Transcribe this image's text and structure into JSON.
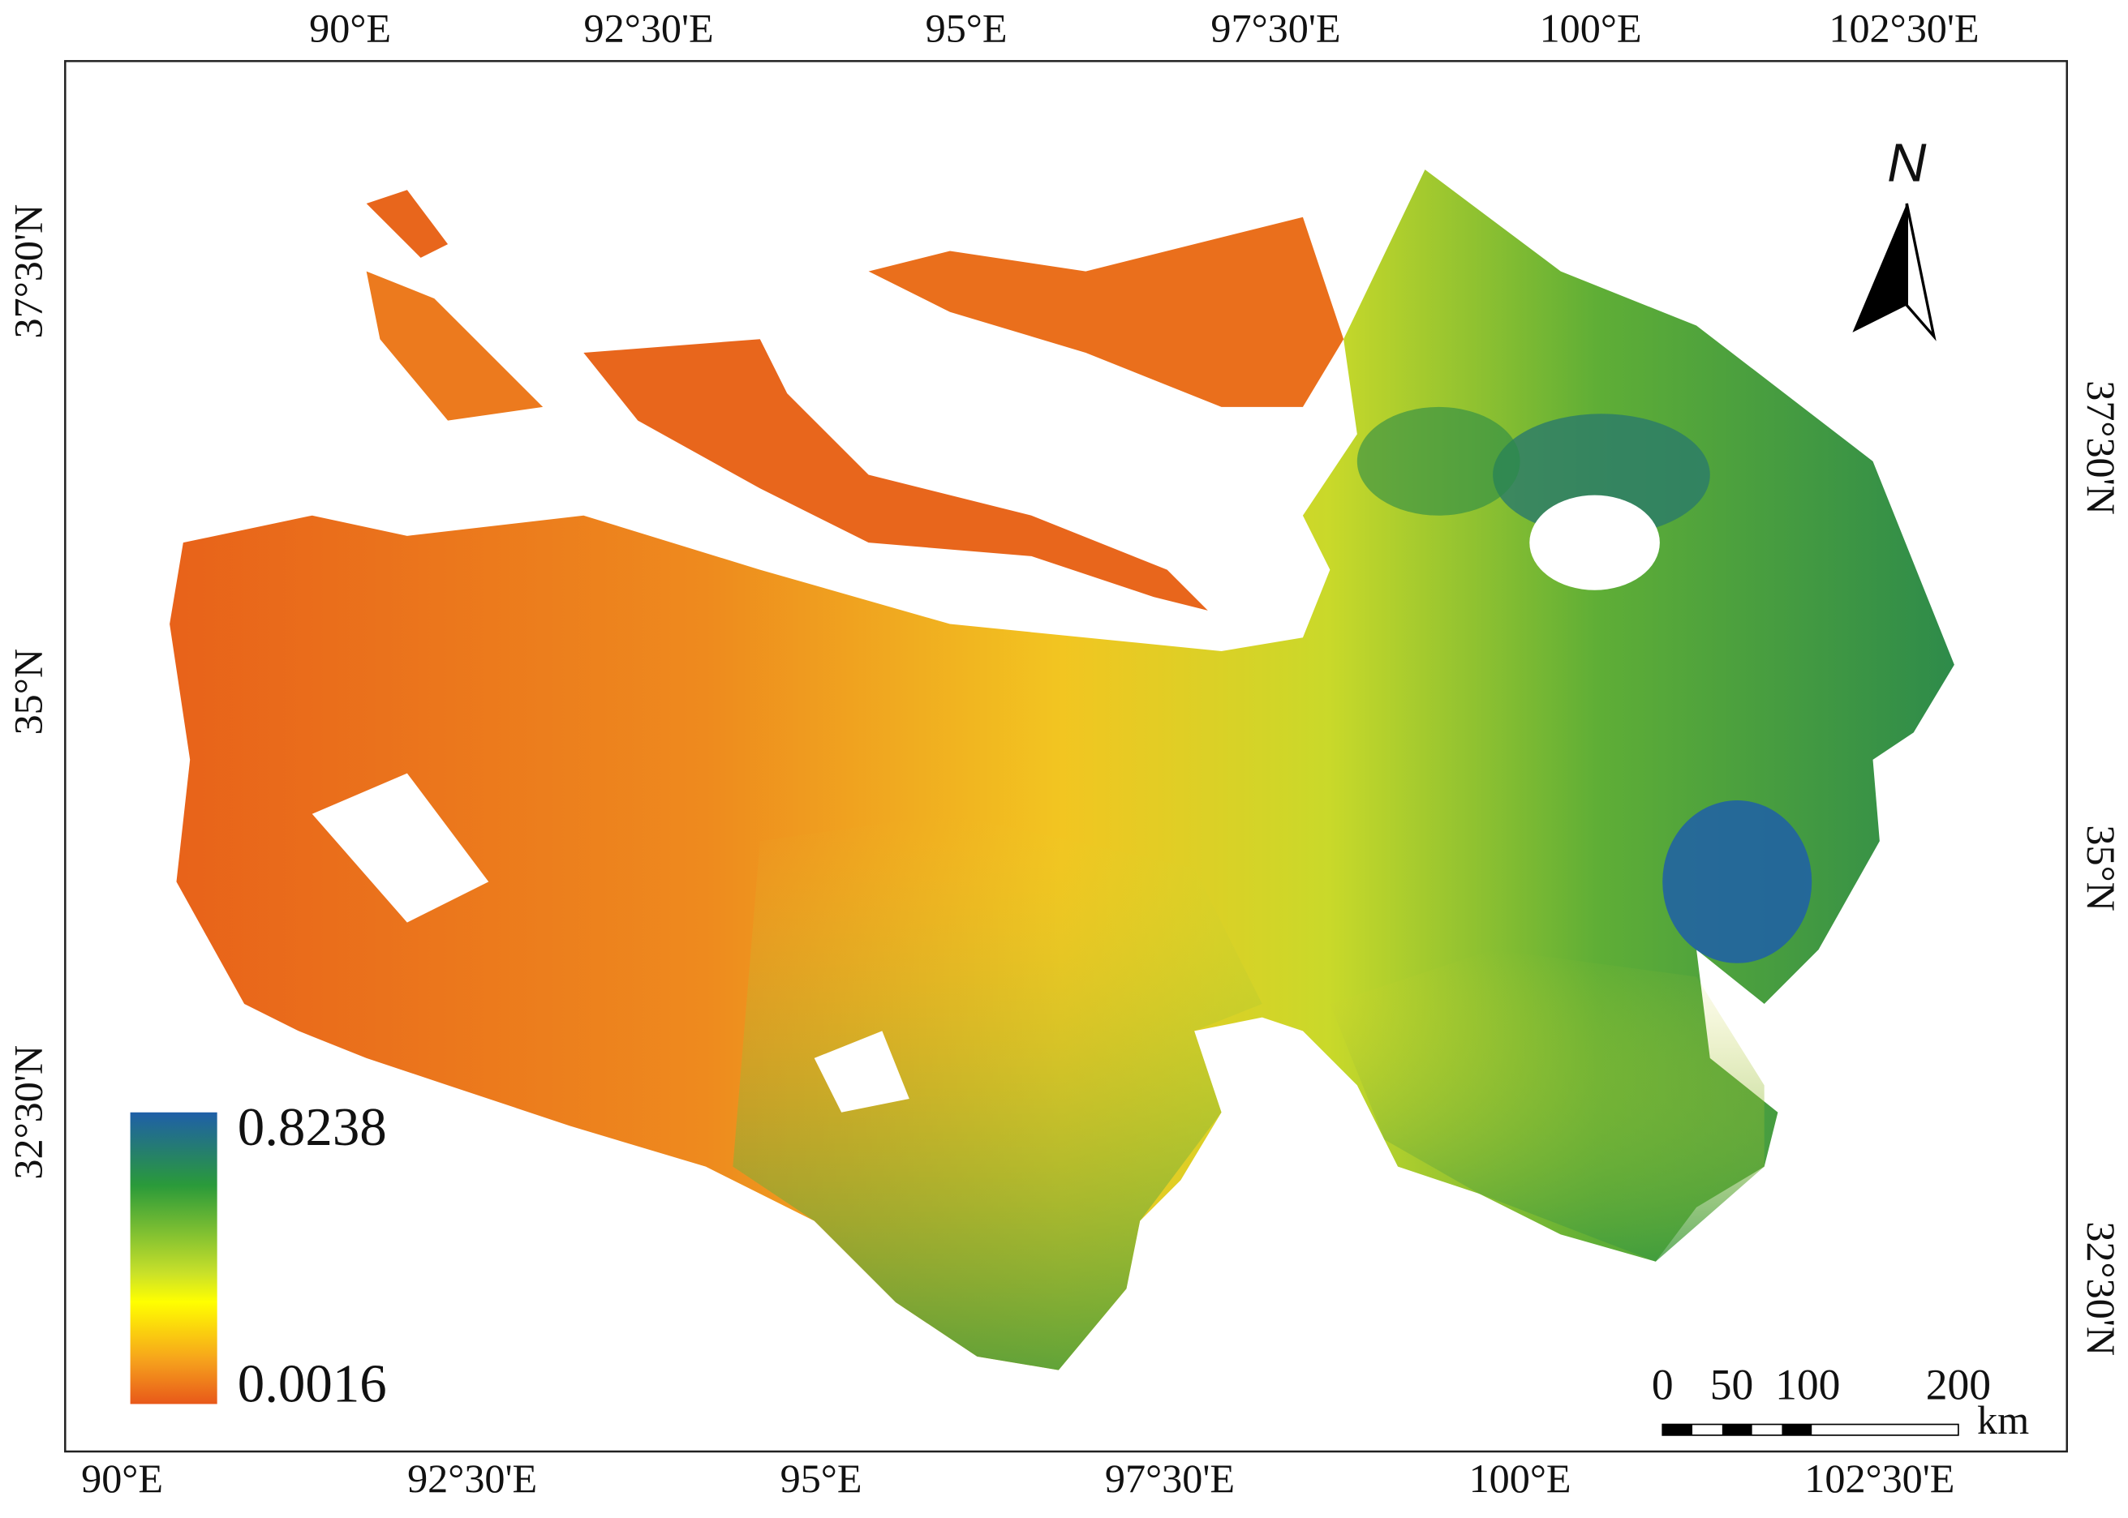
{
  "map": {
    "top_labels": [
      "90°E",
      "92°30'E",
      "95°E",
      "97°30'E",
      "100°E",
      "102°30'E"
    ],
    "bottom_labels": [
      "90°E",
      "92°30'E",
      "95°E",
      "97°30'E",
      "100°E",
      "102°30'E"
    ],
    "left_labels": [
      "37°30'N",
      "35°N",
      "32°30'N"
    ],
    "right_labels": [
      "37°30'N",
      "35°N",
      "32°30'N"
    ],
    "legend": {
      "max": "0.8238",
      "min": "0.0016"
    },
    "north": "N",
    "scale_bar": {
      "labels": [
        "0",
        "50",
        "100",
        "200"
      ],
      "unit": "km"
    }
  }
}
